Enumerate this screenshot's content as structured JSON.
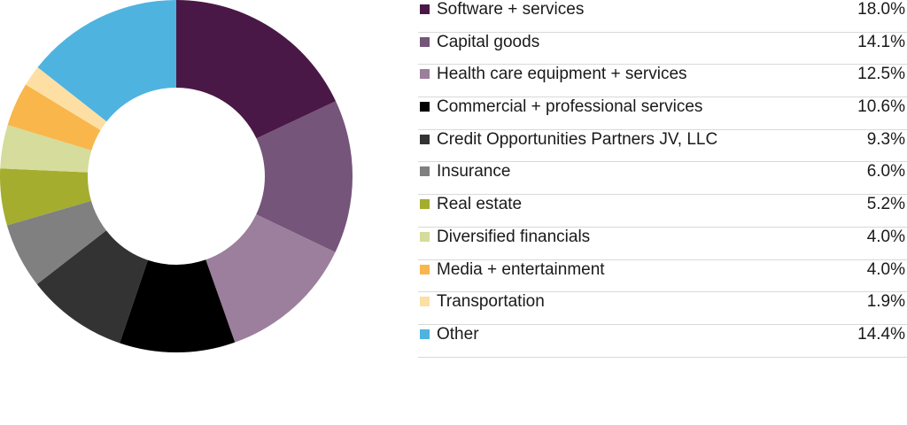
{
  "chart_data": {
    "type": "pie",
    "subtype": "donut",
    "legend_position": "right",
    "categories": [
      "Software + services",
      "Capital goods",
      "Health care equipment + services",
      "Commercial + professional services",
      "Credit Opportunities Partners JV, LLC",
      "Insurance",
      "Real estate",
      "Diversified financials",
      "Media + entertainment",
      "Transportation",
      "Other"
    ],
    "values": [
      18.0,
      14.1,
      12.5,
      10.6,
      9.3,
      6.0,
      5.2,
      4.0,
      4.0,
      1.9,
      14.4
    ],
    "value_labels": [
      "18.0%",
      "14.1%",
      "12.5%",
      "10.6%",
      "9.3%",
      "6.0%",
      "5.2%",
      "4.0%",
      "4.0%",
      "1.9%",
      "14.4%"
    ],
    "colors": [
      "#4a1846",
      "#75557a",
      "#9c7f9c",
      "#000000",
      "#333333",
      "#808080",
      "#a4ad2e",
      "#d6dc9b",
      "#f9b64b",
      "#fddfa4",
      "#4fb3df"
    ]
  }
}
